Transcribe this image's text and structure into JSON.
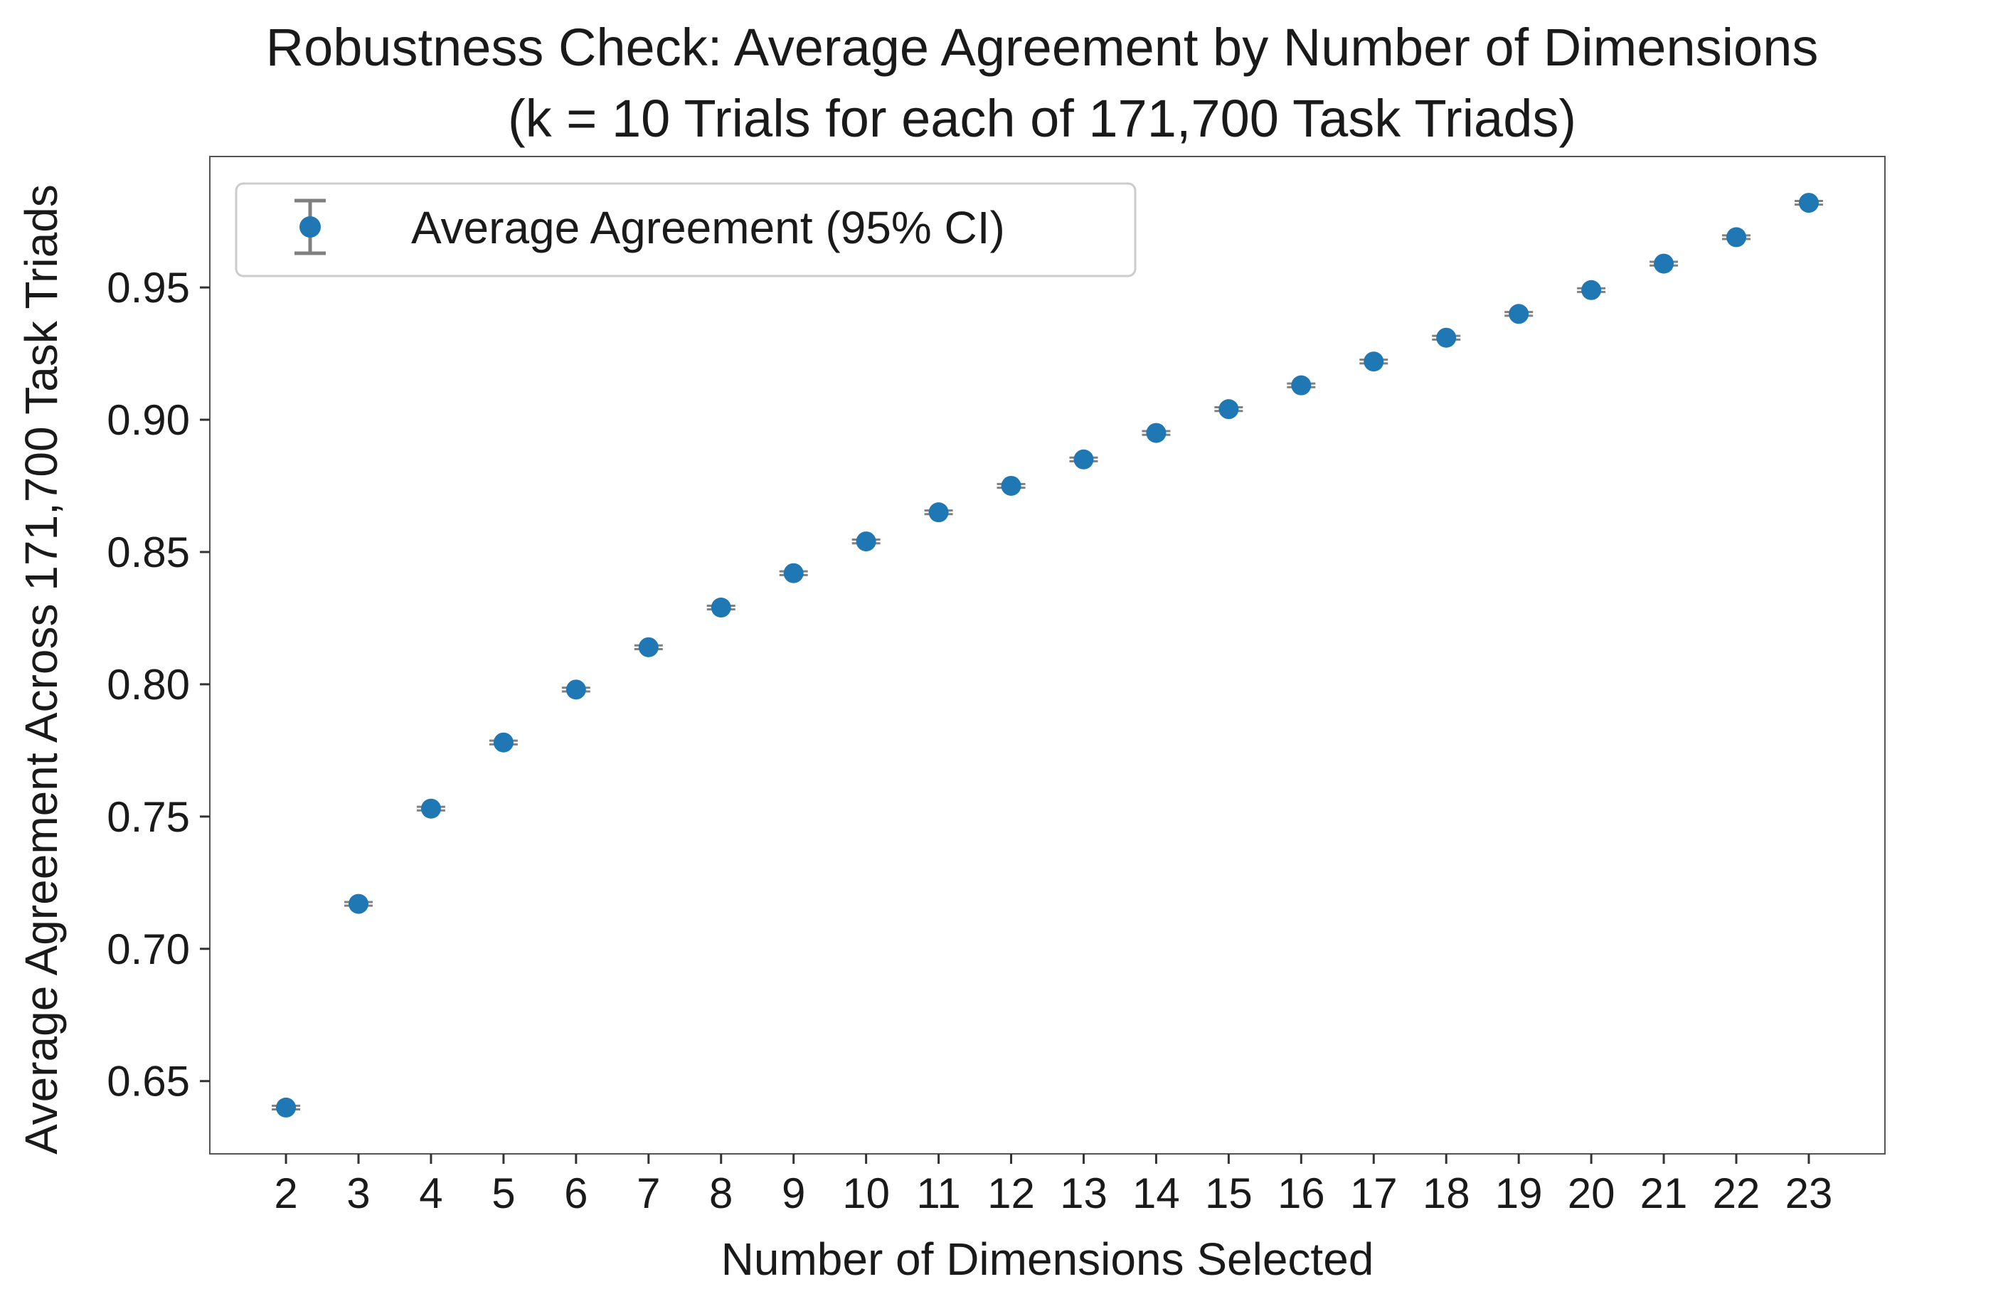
{
  "chart_data": {
    "type": "scatter",
    "title": "Robustness Check: Average Agreement by Number of Dimensions",
    "subtitle": "(k = 10 Trials for each of 171,700 Task Triads)",
    "xlabel": "Number of Dimensions Selected",
    "ylabel": "Average Agreement Across 171,700 Task Triads",
    "x": [
      2,
      3,
      4,
      5,
      6,
      7,
      8,
      9,
      10,
      11,
      12,
      13,
      14,
      15,
      16,
      17,
      18,
      19,
      20,
      21,
      22,
      23
    ],
    "x_ticks": [
      "2",
      "3",
      "4",
      "5",
      "6",
      "7",
      "8",
      "9",
      "10",
      "11",
      "12",
      "13",
      "14",
      "15",
      "16",
      "17",
      "18",
      "19",
      "20",
      "21",
      "22",
      "23"
    ],
    "series": [
      {
        "name": "Average Agreement (95% CI)",
        "color": "#1f77b4",
        "errorbar_color": "#808080",
        "values": [
          0.64,
          0.717,
          0.753,
          0.778,
          0.798,
          0.814,
          0.829,
          0.842,
          0.854,
          0.865,
          0.875,
          0.885,
          0.895,
          0.904,
          0.913,
          0.922,
          0.931,
          0.94,
          0.949,
          0.959,
          0.969,
          0.982
        ],
        "ci": [
          0.0007,
          0.0007,
          0.0007,
          0.0007,
          0.0007,
          0.0007,
          0.0007,
          0.0007,
          0.0007,
          0.0007,
          0.0007,
          0.0007,
          0.0007,
          0.0007,
          0.0007,
          0.0007,
          0.0007,
          0.0007,
          0.0007,
          0.0007,
          0.0007,
          0.0007
        ]
      }
    ],
    "y_ticks": [
      "0.65",
      "0.70",
      "0.75",
      "0.80",
      "0.85",
      "0.90",
      "0.95"
    ],
    "y_tick_values": [
      0.65,
      0.7,
      0.75,
      0.8,
      0.85,
      0.9,
      0.95
    ],
    "xlim": [
      0.95,
      24.05
    ],
    "ylim": [
      0.6225,
      0.9995
    ],
    "grid": false,
    "legend_position": "upper-left"
  }
}
